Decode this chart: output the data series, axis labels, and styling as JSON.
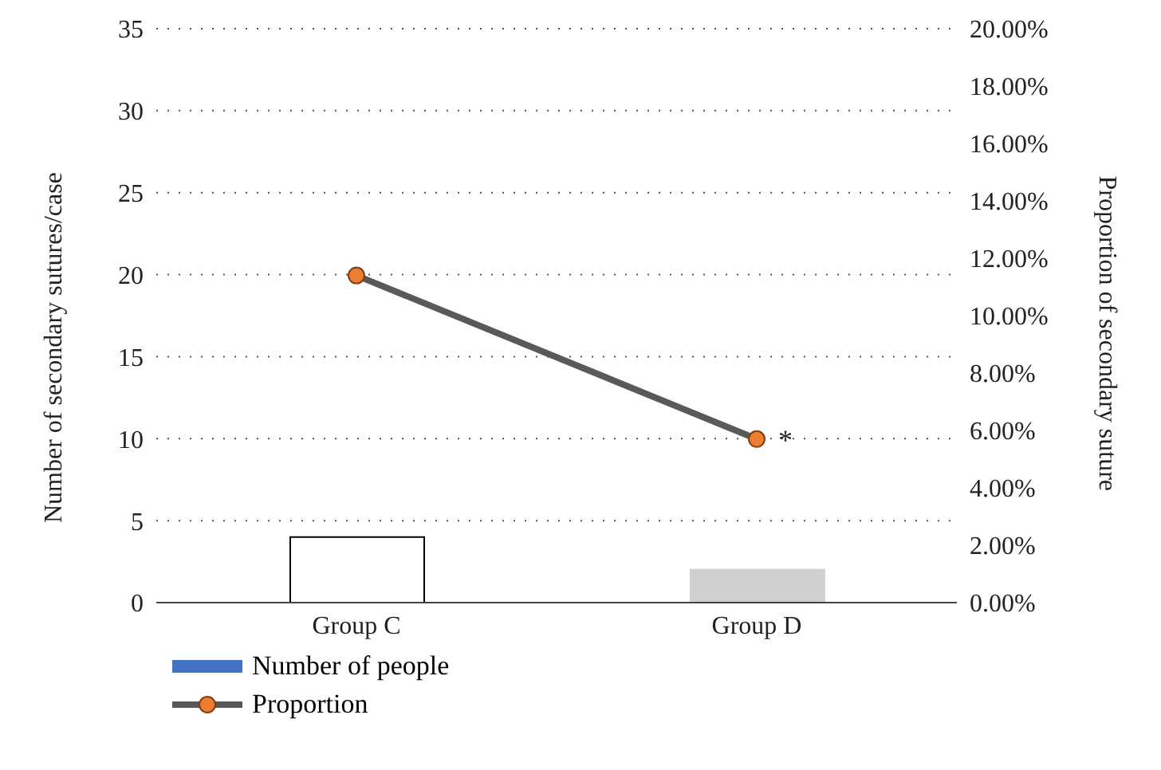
{
  "chart_data": {
    "type": "bar",
    "categories": [
      "Group C",
      "Group D"
    ],
    "ylabel": "Number of secondary sutures/case",
    "y2label": "Proportion of secondary suture",
    "series": [
      {
        "name": "Number of people",
        "color": "#4472c4",
        "colors": [
          "#ffffff",
          "#d0d0d0"
        ],
        "values": [
          4,
          2
        ]
      },
      {
        "name": "Proportion",
        "type": "line",
        "axis": "y2",
        "color": "#595959",
        "values": [
          11.4,
          5.7
        ]
      }
    ],
    "ylim": [
      0,
      35
    ],
    "yticks": [
      0,
      5,
      10,
      15,
      20,
      25,
      30,
      35
    ],
    "y2lim": [
      0,
      20
    ],
    "y2ticks": [
      {
        "value": 0,
        "label": "0.00%"
      },
      {
        "value": 2,
        "label": "2.00%"
      },
      {
        "value": 4,
        "label": "4.00%"
      },
      {
        "value": 6,
        "label": "6.00%"
      },
      {
        "value": 8,
        "label": "8.00%"
      },
      {
        "value": 10,
        "label": "10.00%"
      },
      {
        "value": 12,
        "label": "12.00%"
      },
      {
        "value": 14,
        "label": "14.00%"
      },
      {
        "value": 16,
        "label": "16.00%"
      },
      {
        "value": 18,
        "label": "18.00%"
      },
      {
        "value": 20,
        "label": "20.00%"
      }
    ],
    "annotations": [
      "*"
    ],
    "grid": "y",
    "legend": "bottom left",
    "marker": "circle",
    "line_style": "solid"
  }
}
